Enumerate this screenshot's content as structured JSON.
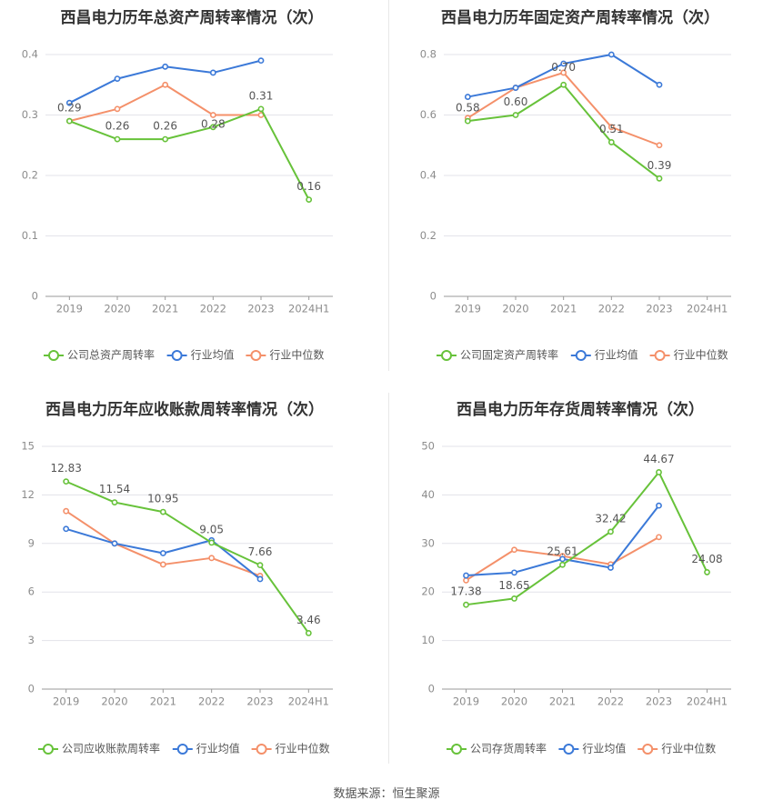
{
  "source_text": "数据来源：恒生聚源",
  "legend_common": {
    "avg": "行业均值",
    "median": "行业中位数"
  },
  "colors": {
    "company": "#67c23a",
    "avg": "#3b79d8",
    "median": "#f4906a",
    "grid": "#e3e3ea",
    "axis": "#999999",
    "tick": "#8c8c8c",
    "label": "#555555",
    "title": "#333333"
  },
  "chart_data": [
    {
      "type": "line",
      "title": "西昌电力历年总资产周转率情况（次）",
      "categories": [
        "2019",
        "2020",
        "2021",
        "2022",
        "2023",
        "2024H1"
      ],
      "ylim": [
        0,
        0.4
      ],
      "yticks": [
        0,
        0.1,
        0.2,
        0.3,
        0.4
      ],
      "ytick_labels": [
        "0",
        "0.1",
        "0.2",
        "0.3",
        "0.4"
      ],
      "series": [
        {
          "key": "company",
          "name": "公司总资产周转率",
          "values": [
            0.29,
            0.26,
            0.26,
            0.28,
            0.31,
            0.16
          ],
          "labels": [
            "0.29",
            "0.26",
            "0.26",
            "0.28",
            "0.31",
            "0.16"
          ]
        },
        {
          "key": "avg",
          "name": "行业均值",
          "values": [
            0.32,
            0.36,
            0.38,
            0.37,
            0.39,
            null
          ]
        },
        {
          "key": "median",
          "name": "行业中位数",
          "values": [
            0.29,
            0.31,
            0.35,
            0.3,
            0.3,
            null
          ]
        }
      ]
    },
    {
      "type": "line",
      "title": "西昌电力历年固定资产周转率情况（次）",
      "categories": [
        "2019",
        "2020",
        "2021",
        "2022",
        "2023",
        "2024H1"
      ],
      "ylim": [
        0,
        0.8
      ],
      "yticks": [
        0,
        0.2,
        0.4,
        0.6,
        0.8
      ],
      "ytick_labels": [
        "0",
        "0.2",
        "0.4",
        "0.6",
        "0.8"
      ],
      "series": [
        {
          "key": "company",
          "name": "公司固定资产周转率",
          "values": [
            0.58,
            0.6,
            0.7,
            0.51,
            0.39,
            null
          ],
          "labels": [
            "0.58",
            "0.60",
            "0.70",
            "0.51",
            "0.39",
            ""
          ]
        },
        {
          "key": "avg",
          "name": "行业均值",
          "values": [
            0.66,
            0.69,
            0.77,
            0.8,
            0.7,
            null
          ]
        },
        {
          "key": "median",
          "name": "行业中位数",
          "values": [
            0.59,
            0.69,
            0.74,
            0.56,
            0.5,
            null
          ]
        }
      ]
    },
    {
      "type": "line",
      "title": "西昌电力历年应收账款周转率情况（次）",
      "categories": [
        "2019",
        "2020",
        "2021",
        "2022",
        "2023",
        "2024H1"
      ],
      "ylim": [
        0,
        15
      ],
      "yticks": [
        0,
        3,
        6,
        9,
        12,
        15
      ],
      "ytick_labels": [
        "0",
        "3",
        "6",
        "9",
        "12",
        "15"
      ],
      "series": [
        {
          "key": "company",
          "name": "公司应收账款周转率",
          "values": [
            12.83,
            11.54,
            10.95,
            9.05,
            7.66,
            3.46
          ],
          "labels": [
            "12.83",
            "11.54",
            "10.95",
            "9.05",
            "7.66",
            "3.46"
          ]
        },
        {
          "key": "avg",
          "name": "行业均值",
          "values": [
            9.9,
            9.0,
            8.4,
            9.2,
            6.8,
            null
          ]
        },
        {
          "key": "median",
          "name": "行业中位数",
          "values": [
            11.0,
            9.0,
            7.7,
            8.1,
            7.0,
            null
          ]
        }
      ]
    },
    {
      "type": "line",
      "title": "西昌电力历年存货周转率情况（次）",
      "categories": [
        "2019",
        "2020",
        "2021",
        "2022",
        "2023",
        "2024H1"
      ],
      "ylim": [
        0,
        50
      ],
      "yticks": [
        0,
        10,
        20,
        30,
        40,
        50
      ],
      "ytick_labels": [
        "0",
        "10",
        "20",
        "30",
        "40",
        "50"
      ],
      "series": [
        {
          "key": "company",
          "name": "公司存货周转率",
          "values": [
            17.38,
            18.65,
            25.61,
            32.42,
            44.67,
            24.08
          ],
          "labels": [
            "17.38",
            "18.65",
            "25.61",
            "32.42",
            "44.67",
            "24.08"
          ]
        },
        {
          "key": "avg",
          "name": "行业均值",
          "values": [
            23.4,
            24.0,
            26.8,
            25.0,
            37.8,
            null
          ]
        },
        {
          "key": "median",
          "name": "行业中位数",
          "values": [
            22.4,
            28.7,
            27.4,
            25.7,
            31.3,
            null
          ]
        }
      ]
    }
  ]
}
